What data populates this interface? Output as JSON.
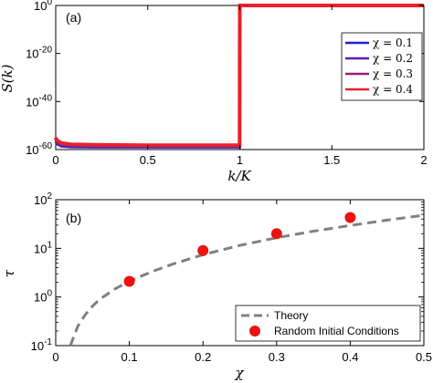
{
  "chart_data": [
    {
      "type": "line",
      "panel_label": "(a)",
      "xlabel": "k/K",
      "ylabel": "S(k)",
      "xlim": [
        0,
        2
      ],
      "ylim_log10": [
        -60,
        0
      ],
      "y_scale": "log",
      "x_ticks": [
        "0",
        "0.5",
        "1",
        "1.5",
        "2"
      ],
      "y_ticks": [
        {
          "base": "10",
          "exp": "0",
          "value": 0
        },
        {
          "base": "10",
          "exp": "-20",
          "value": -20
        },
        {
          "base": "10",
          "exp": "-40",
          "value": -40
        },
        {
          "base": "10",
          "exp": "-60",
          "value": -60
        }
      ],
      "legend_position": "top-right",
      "series": [
        {
          "name": "χ = 0.1",
          "color": "#1f1fd6",
          "x": [
            0,
            0.004,
            0.03,
            0.08,
            0.2,
            0.5,
            0.8,
            0.999,
            1.0,
            1.5,
            2.0
          ],
          "log10_y": [
            -55,
            -57.5,
            -58.6,
            -58.9,
            -59.0,
            -59.0,
            -59.0,
            -59.0,
            0,
            0,
            0
          ]
        },
        {
          "name": "χ = 0.2",
          "color": "#5a1fb0",
          "x": [
            0,
            0.004,
            0.03,
            0.08,
            0.2,
            0.5,
            0.8,
            0.999,
            1.0,
            1.5,
            2.0
          ],
          "log10_y": [
            -55,
            -57.0,
            -58.2,
            -58.6,
            -58.7,
            -58.8,
            -58.8,
            -58.8,
            0,
            0,
            0
          ]
        },
        {
          "name": "χ = 0.3",
          "color": "#9a1f7a",
          "x": [
            0,
            0.004,
            0.03,
            0.08,
            0.2,
            0.5,
            0.8,
            0.999,
            1.0,
            1.5,
            2.0
          ],
          "log10_y": [
            -55,
            -56.5,
            -57.8,
            -58.2,
            -58.4,
            -58.5,
            -58.5,
            -58.5,
            0,
            0,
            0
          ]
        },
        {
          "name": "χ = 0.4",
          "color": "#e8202a",
          "x": [
            0,
            0.004,
            0.03,
            0.08,
            0.2,
            0.5,
            0.8,
            0.999,
            1.0,
            1.5,
            2.0
          ],
          "log10_y": [
            -55,
            -56.0,
            -57.3,
            -57.8,
            -58.0,
            -58.2,
            -58.2,
            -58.2,
            0,
            0,
            0
          ]
        }
      ]
    },
    {
      "type": "scatter",
      "panel_label": "(b)",
      "xlabel": "χ",
      "ylabel": "τ",
      "xlim": [
        0,
        0.5
      ],
      "ylim_log10": [
        -1,
        2
      ],
      "y_scale": "log",
      "x_ticks": [
        "0",
        "0.1",
        "0.2",
        "0.3",
        "0.4",
        "0.5"
      ],
      "y_ticks": [
        {
          "base": "10",
          "exp": "2",
          "value": 2
        },
        {
          "base": "10",
          "exp": "1",
          "value": 1
        },
        {
          "base": "10",
          "exp": "0",
          "value": 0
        },
        {
          "base": "10",
          "exp": "-1",
          "value": -1
        }
      ],
      "legend_position": "bottom-right",
      "theory": {
        "name": "Theory",
        "color": "#808080",
        "x": [
          0.02,
          0.025,
          0.03,
          0.04,
          0.05,
          0.06,
          0.08,
          0.1,
          0.13,
          0.16,
          0.2,
          0.25,
          0.3,
          0.35,
          0.4,
          0.45,
          0.5
        ],
        "y": [
          0.1,
          0.16,
          0.25,
          0.43,
          0.65,
          0.9,
          1.45,
          2.1,
          3.3,
          4.8,
          7.4,
          11.5,
          16.5,
          22.5,
          29.5,
          38,
          48
        ]
      },
      "points": {
        "name": "Random Initial Conditions",
        "color": "#ee1111",
        "x": [
          0.1,
          0.2,
          0.3,
          0.4
        ],
        "y": [
          2.1,
          9.0,
          20.0,
          43.0
        ]
      }
    }
  ]
}
